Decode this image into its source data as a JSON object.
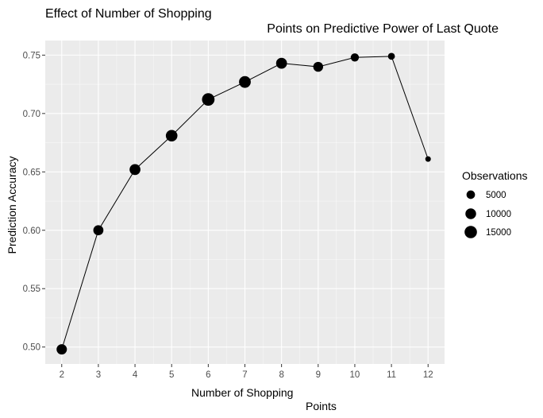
{
  "chart_data": {
    "type": "scatter",
    "title_lines": [
      "Effect of Number of Shopping",
      "Points on Predictive Power of Last Quote"
    ],
    "xlabel_lines": [
      "Number of Shopping",
      "Points"
    ],
    "ylabel": "Prediction Accuracy",
    "x": [
      2,
      3,
      4,
      5,
      6,
      7,
      8,
      9,
      10,
      11,
      12
    ],
    "y": [
      0.498,
      0.6,
      0.652,
      0.681,
      0.712,
      0.727,
      0.743,
      0.74,
      0.748,
      0.749,
      0.661
    ],
    "observations": [
      9000,
      8500,
      10500,
      12500,
      15500,
      13000,
      10500,
      8000,
      4500,
      2500,
      1000
    ],
    "xlim": [
      1.55,
      12.45
    ],
    "ylim": [
      0.4855,
      0.7625
    ],
    "x_ticks": [
      2,
      3,
      4,
      5,
      6,
      7,
      8,
      9,
      10,
      11,
      12
    ],
    "y_ticks": [
      0.5,
      0.55,
      0.6,
      0.65,
      0.7,
      0.75
    ],
    "y_tick_labels": [
      "0.50",
      "0.55",
      "0.60",
      "0.65",
      "0.70",
      "0.75"
    ],
    "series_line": true,
    "grid": true,
    "legend": {
      "title": "Observations",
      "position": "right",
      "entries": [
        {
          "label": "5000",
          "value": 5000
        },
        {
          "label": "10000",
          "value": 10000
        },
        {
          "label": "15000",
          "value": 15000
        }
      ]
    },
    "colors": {
      "panel": "#ebebeb",
      "grid_major": "#ffffff",
      "points": "#000000",
      "line": "#000000",
      "tick_label": "#4d4d4d"
    }
  }
}
